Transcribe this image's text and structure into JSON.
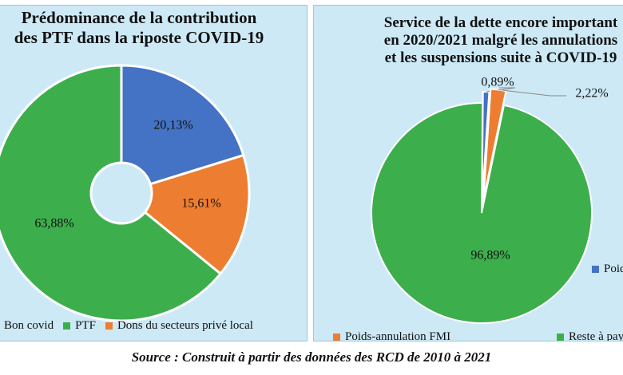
{
  "source": "Source : Construit à partir des données des RCD de 2010 à 2021",
  "colors": {
    "blue": "#4472c4",
    "orange": "#ed7d31",
    "green": "#3dae4c"
  },
  "chart_data": [
    {
      "type": "pie",
      "subtype": "donut",
      "title_lines": [
        "Prédominance de la contribution",
        "des PTF dans la riposte COVID-19"
      ],
      "legend": [
        "Bon covid",
        "PTF",
        "Dons du secteurs privé local"
      ],
      "legend_placement": "bottom",
      "slices": [
        {
          "name": "Bon covid",
          "value": 20.13,
          "label": "20,13%",
          "color": "#4472c4"
        },
        {
          "name": "Dons du secteurs privé local",
          "value": 15.61,
          "label": "15,61%",
          "color": "#ed7d31"
        },
        {
          "name": "PTF",
          "value": 63.88,
          "label": "63,88%",
          "color": "#3dae4c"
        }
      ]
    },
    {
      "type": "pie",
      "title_lines": [
        "Service de la dette encore important",
        "en 2020/2021 malgré les annulations",
        "et les suspensions suite à COVID-19"
      ],
      "legend": [
        "Poids-annulation FMI",
        "Reste à payer",
        "Poids"
      ],
      "legend_placement": "bottom",
      "slices": [
        {
          "name": "Poids",
          "value": 0.89,
          "label": "0,89%",
          "color": "#4472c4"
        },
        {
          "name": "Poids-annulation FMI",
          "value": 2.22,
          "label": "2,22%",
          "color": "#ed7d31"
        },
        {
          "name": "Reste à payer",
          "value": 96.89,
          "label": "96,89%",
          "color": "#3dae4c"
        }
      ]
    }
  ]
}
